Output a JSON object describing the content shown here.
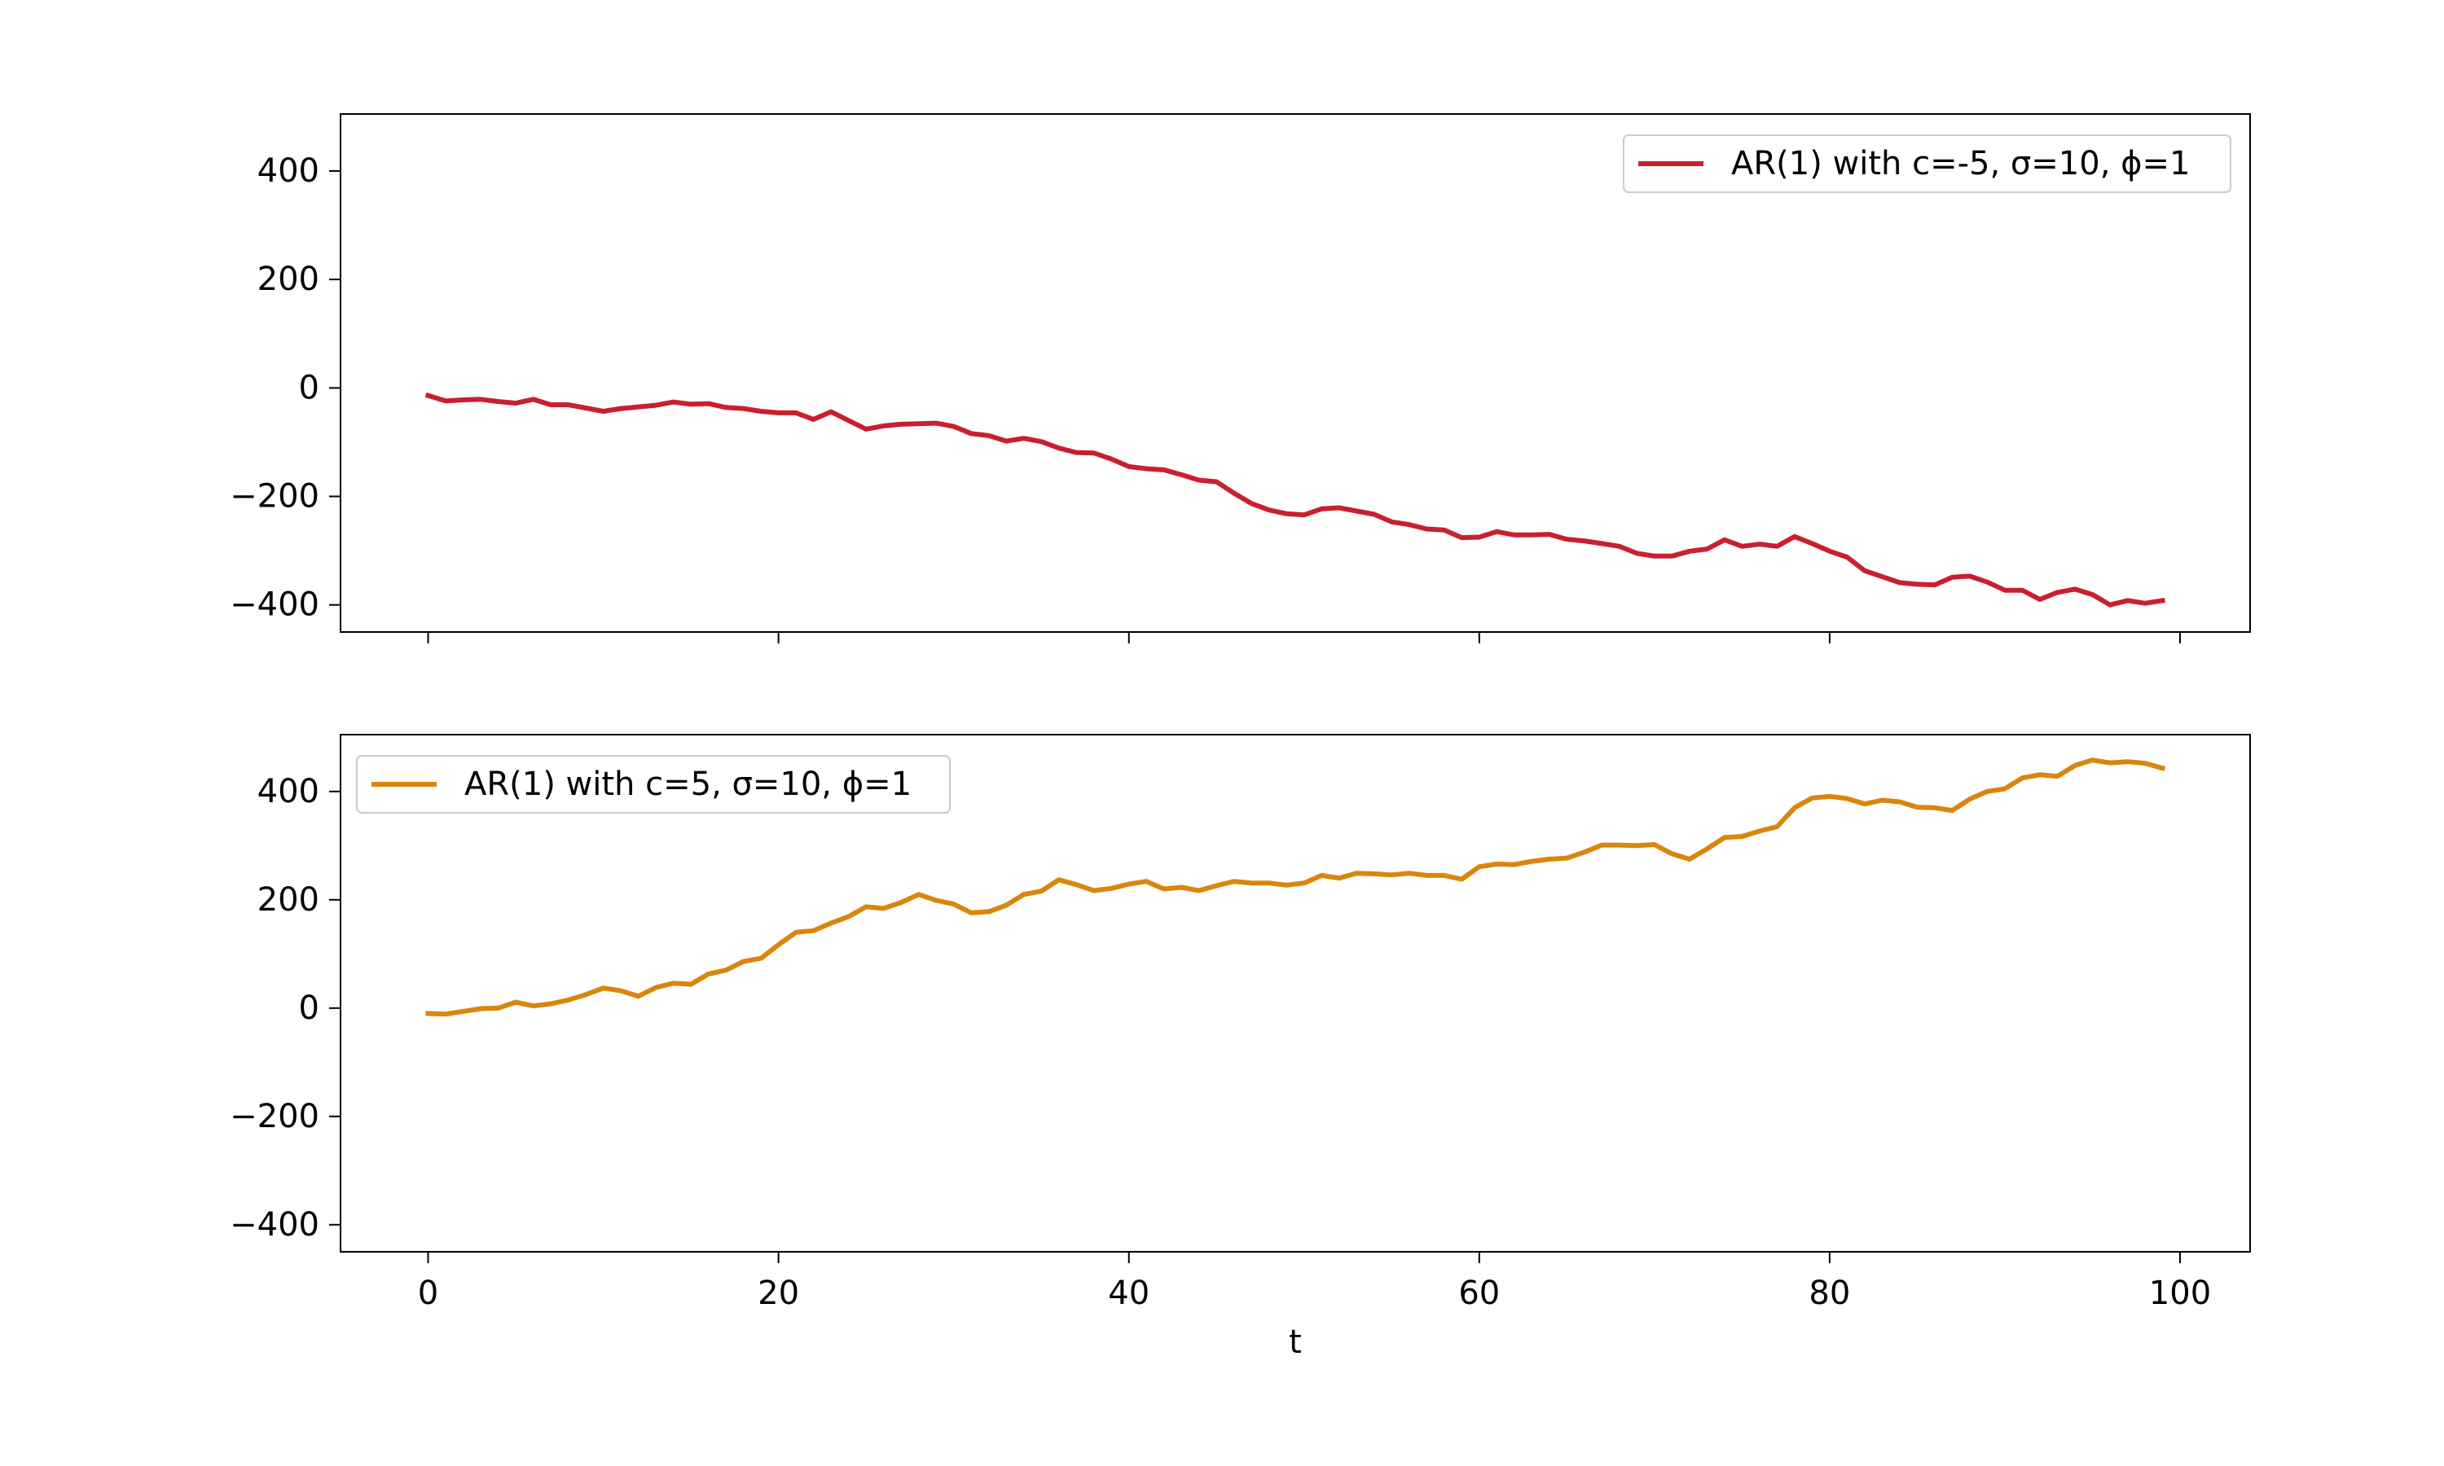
{
  "chart_data": [
    {
      "type": "line",
      "xlabel": "",
      "ylabel": "",
      "xlim": [
        -5,
        104
      ],
      "ylim": [
        -450,
        505
      ],
      "xticks": [
        0,
        20,
        40,
        60,
        80,
        100
      ],
      "yticks": [
        -400,
        -200,
        0,
        200,
        400
      ],
      "show_x_tick_labels": false,
      "legend_position": "upper right",
      "grid": false,
      "series": [
        {
          "name": "AR(1) with c=-5, σ=10, ϕ=1",
          "color": "#c8202f",
          "x": [
            0,
            1,
            2,
            3,
            4,
            5,
            6,
            7,
            8,
            9,
            10,
            11,
            12,
            13,
            14,
            15,
            16,
            17,
            18,
            19,
            20,
            21,
            22,
            23,
            24,
            25,
            26,
            27,
            28,
            29,
            30,
            31,
            32,
            33,
            34,
            35,
            36,
            37,
            38,
            39,
            40,
            41,
            42,
            43,
            44,
            45,
            46,
            47,
            48,
            49,
            50,
            51,
            52,
            53,
            54,
            55,
            56,
            57,
            58,
            59,
            60,
            61,
            62,
            63,
            64,
            65,
            66,
            67,
            68,
            69,
            70,
            71,
            72,
            73,
            74,
            75,
            76,
            77,
            78,
            79,
            80,
            81,
            82,
            83,
            84,
            85,
            86,
            87,
            88,
            89,
            90,
            91,
            92,
            93,
            94,
            95,
            96,
            97,
            98,
            99
          ],
          "y": [
            -14,
            -24,
            -22,
            -21,
            -25,
            -28,
            -21,
            -31,
            -31,
            -37,
            -43,
            -38,
            -35,
            -32,
            -26,
            -30,
            -29,
            -36,
            -38,
            -43,
            -46,
            -46,
            -58,
            -44,
            -60,
            -76,
            -70,
            -67,
            -66,
            -65,
            -71,
            -84,
            -88,
            -98,
            -93,
            -99,
            -111,
            -119,
            -120,
            -131,
            -145,
            -149,
            -151,
            -160,
            -170,
            -173,
            -194,
            -213,
            -225,
            -232,
            -234,
            -223,
            -221,
            -227,
            -233,
            -247,
            -252,
            -260,
            -262,
            -276,
            -275,
            -265,
            -271,
            -271,
            -270,
            -279,
            -282,
            -287,
            -292,
            -305,
            -310,
            -310,
            -301,
            -297,
            -280,
            -292,
            -288,
            -292,
            -274,
            -287,
            -301,
            -312,
            -337,
            -348,
            -359,
            -362,
            -363,
            -349,
            -347,
            -358,
            -373,
            -373,
            -390,
            -377,
            -371,
            -381,
            -400,
            -392,
            -397,
            -392
          ]
        }
      ]
    },
    {
      "type": "line",
      "xlabel": "t",
      "ylabel": "",
      "xlim": [
        -5,
        104
      ],
      "ylim": [
        -450,
        505
      ],
      "xticks": [
        0,
        20,
        40,
        60,
        80,
        100
      ],
      "yticks": [
        -400,
        -200,
        0,
        200,
        400
      ],
      "show_x_tick_labels": true,
      "legend_position": "upper left",
      "grid": false,
      "series": [
        {
          "name": "AR(1) with c=5, σ=10, ϕ=1",
          "color": "#d9860d",
          "x": [
            0,
            1,
            2,
            3,
            4,
            5,
            6,
            7,
            8,
            9,
            10,
            11,
            12,
            13,
            14,
            15,
            16,
            17,
            18,
            19,
            20,
            21,
            22,
            23,
            24,
            25,
            26,
            27,
            28,
            29,
            30,
            31,
            32,
            33,
            34,
            35,
            36,
            37,
            38,
            39,
            40,
            41,
            42,
            43,
            44,
            45,
            46,
            47,
            48,
            49,
            50,
            51,
            52,
            53,
            54,
            55,
            56,
            57,
            58,
            59,
            60,
            61,
            62,
            63,
            64,
            65,
            66,
            67,
            68,
            69,
            70,
            71,
            72,
            73,
            74,
            75,
            76,
            77,
            78,
            79,
            80,
            81,
            82,
            83,
            84,
            85,
            86,
            87,
            88,
            89,
            90,
            91,
            92,
            93,
            94,
            95,
            96,
            97,
            98,
            99
          ],
          "y": [
            -10,
            -11,
            -6,
            -1,
            0,
            11,
            4,
            8,
            15,
            25,
            37,
            32,
            22,
            38,
            46,
            44,
            63,
            70,
            86,
            92,
            117,
            140,
            143,
            157,
            169,
            187,
            184,
            195,
            210,
            199,
            192,
            176,
            178,
            190,
            210,
            216,
            237,
            228,
            217,
            221,
            229,
            234,
            220,
            223,
            217,
            226,
            234,
            231,
            231,
            227,
            231,
            245,
            240,
            249,
            248,
            246,
            249,
            245,
            245,
            238,
            261,
            266,
            265,
            271,
            275,
            277,
            288,
            301,
            301,
            300,
            302,
            285,
            275,
            294,
            315,
            317,
            327,
            335,
            370,
            388,
            391,
            387,
            377,
            384,
            381,
            371,
            370,
            365,
            386,
            400,
            405,
            425,
            431,
            428,
            448,
            458,
            453,
            455,
            452,
            443
          ]
        }
      ]
    }
  ]
}
